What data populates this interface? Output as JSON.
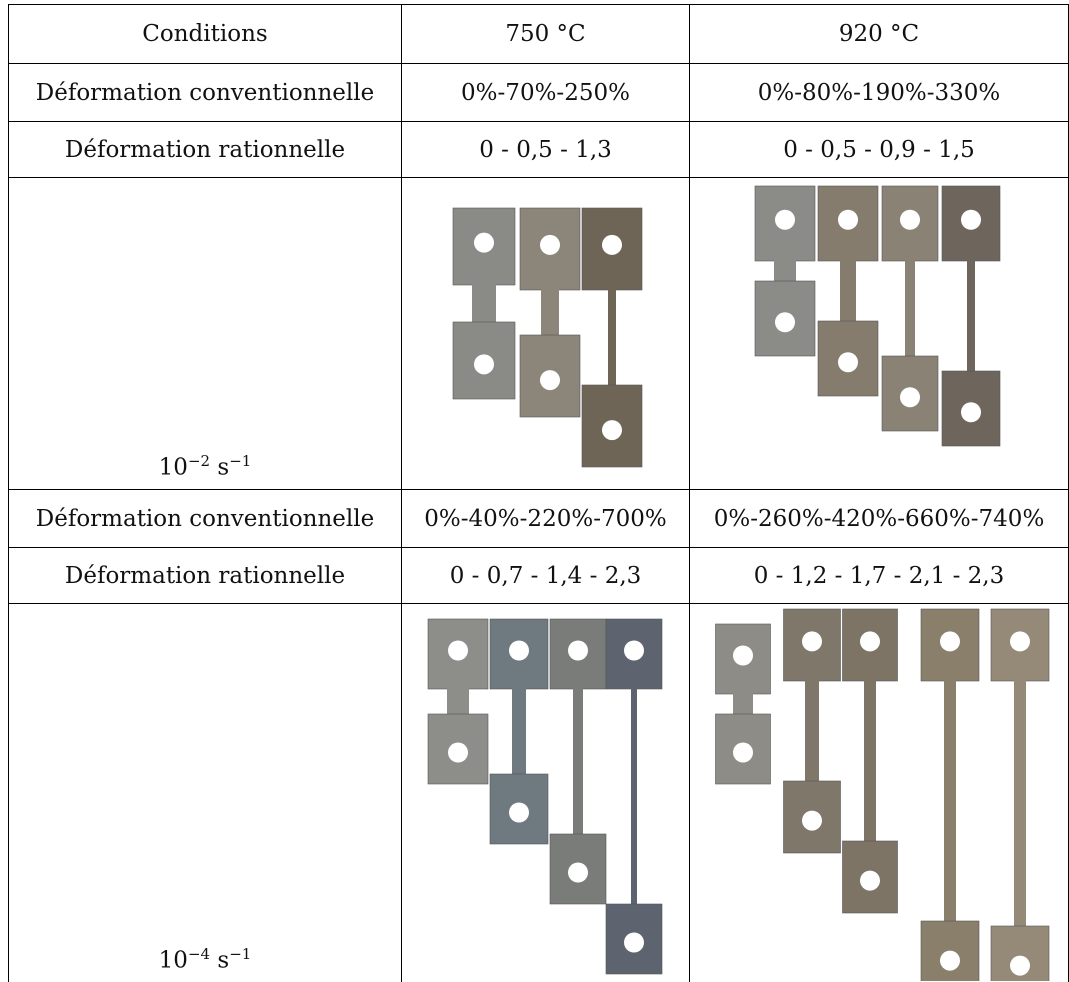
{
  "table": {
    "header": [
      "Conditions",
      "750 °C",
      "920 °C"
    ],
    "blocks": [
      {
        "rows": [
          [
            "Déformation conventionnelle",
            "0%-70%-250%",
            "0%-80%-190%-330%"
          ],
          [
            "Déformation rationnelle",
            "0 - 0,5 - 1,3",
            "0 - 0,5 - 0,9 - 1,5"
          ]
        ],
        "rate": {
          "base": "10",
          "exponent": "−2",
          "unit": "s",
          "unit_exponent": "−1"
        }
      },
      {
        "rows": [
          [
            "Déformation conventionnelle",
            "0%-40%-220%-700%",
            "0%-260%-420%-660%-740%"
          ],
          [
            "Déformation rationnelle",
            "0 - 0,7 - 1,4 - 2,3",
            "0 - 1,2 - 1,7 - 2,1 - 2,3"
          ]
        ],
        "rate": {
          "base": "10",
          "exponent": "−4",
          "unit": "s",
          "unit_exponent": "−1"
        }
      }
    ]
  }
}
